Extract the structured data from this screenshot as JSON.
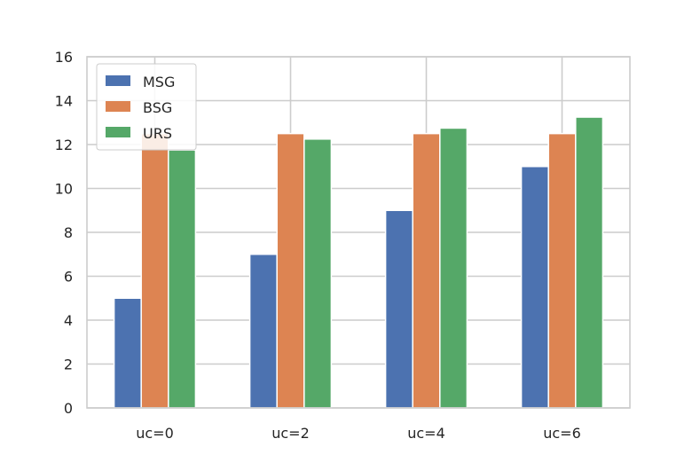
{
  "chart_data": {
    "type": "bar",
    "title": "",
    "xlabel": "",
    "ylabel": "",
    "categories": [
      "uc=0",
      "uc=2",
      "uc=4",
      "uc=6"
    ],
    "series": [
      {
        "name": "MSG",
        "values": [
          5,
          7,
          9,
          11
        ],
        "color": "#4c72b0"
      },
      {
        "name": "BSG",
        "values": [
          12.5,
          12.5,
          12.5,
          12.5
        ],
        "color": "#dd8452"
      },
      {
        "name": "URS",
        "values": [
          11.75,
          12.25,
          12.75,
          13.25
        ],
        "color": "#55a868"
      }
    ],
    "ylim": [
      0,
      16
    ],
    "yticks": [
      "0",
      "2",
      "4",
      "6",
      "8",
      "10",
      "12",
      "14",
      "16"
    ],
    "grid": true,
    "legend": "top-left"
  }
}
